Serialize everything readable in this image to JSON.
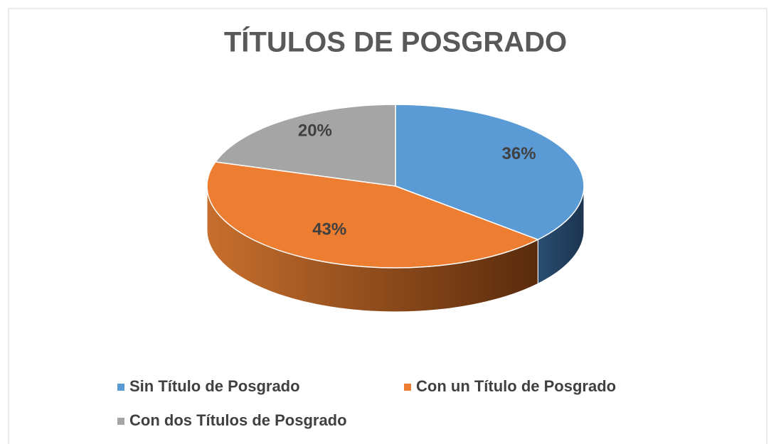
{
  "chart_data": {
    "type": "pie",
    "title": "TÍTULOS DE POSGRADO",
    "categories": [
      "Sin Título de Posgrado",
      "Con un Título de Posgrado",
      "Con dos Títulos de Posgrado"
    ],
    "values": [
      36,
      43,
      20
    ],
    "value_labels": [
      "36%",
      "43%",
      "20%"
    ],
    "colors": [
      "#5b9bd5",
      "#ed7d31",
      "#a5a5a5"
    ],
    "legend": "bottom"
  }
}
